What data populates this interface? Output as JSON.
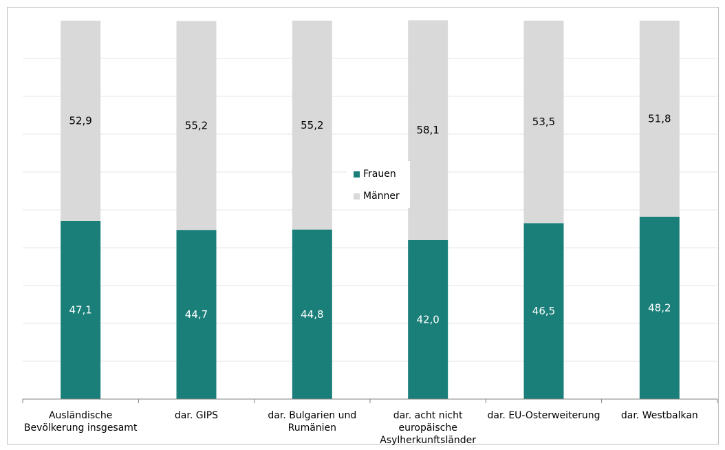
{
  "chart_data": {
    "type": "bar",
    "stacked": true,
    "title": "",
    "xlabel": "",
    "ylabel": "",
    "ylim": [
      0,
      100
    ],
    "categories": [
      "Ausländische\nBevölkerung insgesamt",
      "dar. GIPS",
      "dar. Bulgarien und\nRumänien",
      "dar. acht nicht\neuropäische\nAsylherkunftsländer",
      "dar. EU-Osterweiterung",
      "dar. Westbalkan"
    ],
    "series": [
      {
        "name": "Frauen",
        "values": [
          47.1,
          44.7,
          44.8,
          42.0,
          46.5,
          48.2
        ],
        "labels": [
          "47,1",
          "44,7",
          "44,8",
          "42,0",
          "46,5",
          "48,2"
        ],
        "color": "#1a7f79",
        "label_color": "#ffffff"
      },
      {
        "name": "Männer",
        "values": [
          52.9,
          55.2,
          55.2,
          58.1,
          53.5,
          51.8
        ],
        "labels": [
          "52,9",
          "55,2",
          "55,2",
          "58,1",
          "53,5",
          "51,8"
        ],
        "color": "#d9d9d9",
        "label_color": "#000000"
      }
    ],
    "grid": true,
    "legend": "center"
  }
}
